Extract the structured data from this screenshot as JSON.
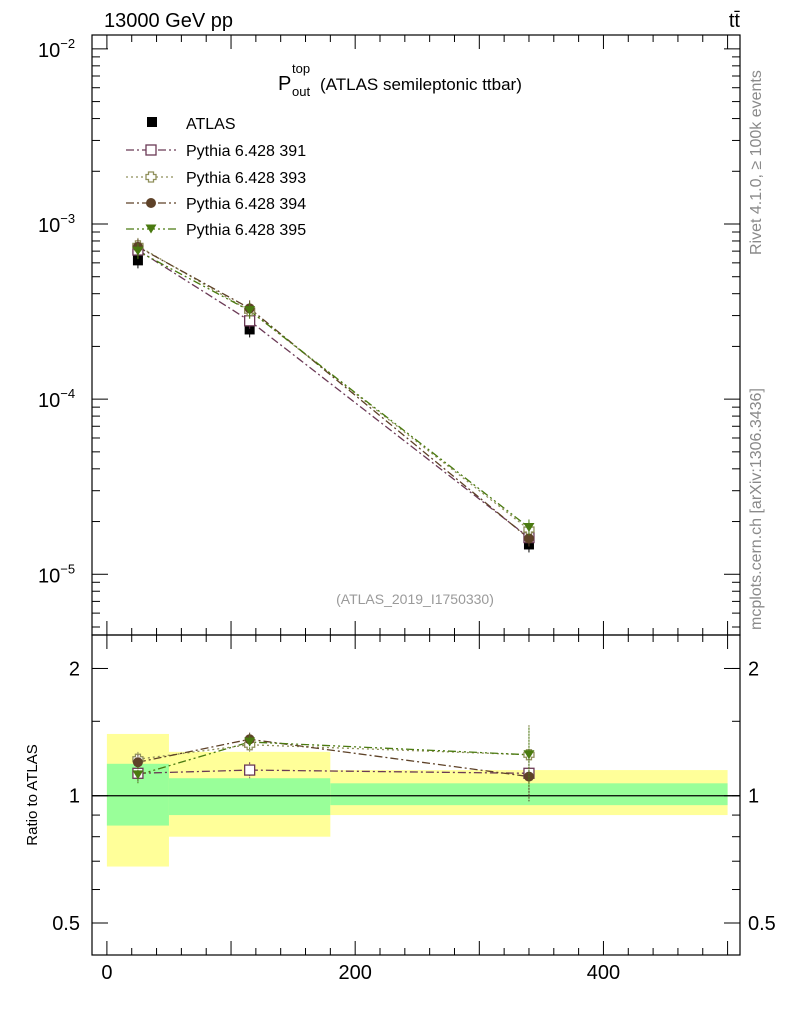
{
  "header": {
    "left": "13000 GeV pp",
    "right": "tt̄"
  },
  "side_text": {
    "rivet": "Rivet 4.1.0, ≥ 100k events",
    "mcplots": "mcplots.cern.ch [arXiv:1306.3436]"
  },
  "plot_title": {
    "base": "P",
    "sup": "top",
    "sub": "out",
    "rest": "(ATLAS semileptonic ttbar)"
  },
  "watermark": "(ATLAS_2019_I1750330)",
  "colors": {
    "atlas": "#000000",
    "p391": "#6b3a56",
    "p393": "#8f8f5a",
    "p394": "#5e4228",
    "p395": "#4a7a10",
    "band_inner": "#99ff99",
    "band_outer": "#ffff99"
  },
  "chart_data": [
    {
      "type": "scatter",
      "panel": "main",
      "yscale": "log",
      "ylim": [
        4.5e-06,
        0.012
      ],
      "xlim": [
        -12,
        510
      ],
      "yticks": [
        {
          "value": 1e-05,
          "base": "10",
          "exp": "−5"
        },
        {
          "value": 0.0001,
          "base": "10",
          "exp": "−4"
        },
        {
          "value": 0.001,
          "base": "10",
          "exp": "−3"
        },
        {
          "value": 0.01,
          "base": "10",
          "exp": "−2"
        }
      ],
      "x": [
        25,
        115,
        340
      ],
      "series": [
        {
          "name": "ATLAS",
          "key": "atlas",
          "marker": "square-filled",
          "line": "none",
          "values": [
            0.00062,
            0.00025,
            1.48e-05
          ]
        },
        {
          "name": "Pythia 6.428 391",
          "key": "p391",
          "marker": "square-open",
          "line": "dashdot",
          "values": [
            0.00071,
            0.00028,
            1.62e-05
          ]
        },
        {
          "name": "Pythia 6.428 393",
          "key": "p393",
          "marker": "cross-open",
          "line": "dotted",
          "values": [
            0.00075,
            0.00032,
            1.8e-05
          ]
        },
        {
          "name": "Pythia 6.428 394",
          "key": "p394",
          "marker": "circle-filled",
          "line": "dashdot",
          "values": [
            0.00074,
            0.00033,
            1.6e-05
          ]
        },
        {
          "name": "Pythia 6.428 395",
          "key": "p395",
          "marker": "triangle-down-filled",
          "line": "dashdotdot",
          "values": [
            0.0007,
            0.00032,
            1.85e-05
          ]
        }
      ],
      "legend_position": "top-left"
    },
    {
      "type": "scatter",
      "panel": "ratio",
      "yscale": "log",
      "ylabel": "Ratio to ATLAS",
      "ylim": [
        0.42,
        2.4
      ],
      "xlim": [
        -12,
        510
      ],
      "yticks": [
        {
          "value": 0.5,
          "label": "0.5"
        },
        {
          "value": 1,
          "label": "1"
        },
        {
          "value": 2,
          "label": "2"
        }
      ],
      "xticks": [
        {
          "value": 0,
          "label": "0"
        },
        {
          "value": 200,
          "label": "200"
        },
        {
          "value": 400,
          "label": "400"
        }
      ],
      "bins": [
        [
          0,
          50
        ],
        [
          50,
          180
        ],
        [
          180,
          500
        ]
      ],
      "band_inner": [
        [
          0.85,
          1.19
        ],
        [
          0.9,
          1.1
        ],
        [
          0.95,
          1.07
        ]
      ],
      "band_outer": [
        [
          0.68,
          1.4
        ],
        [
          0.8,
          1.27
        ],
        [
          0.9,
          1.15
        ]
      ],
      "x": [
        25,
        115,
        340
      ],
      "series": [
        {
          "name": "Pythia 6.428 391",
          "key": "p391",
          "values": [
            1.13,
            1.15,
            1.13
          ],
          "err": [
            0.05,
            0.05,
            0.12
          ]
        },
        {
          "name": "Pythia 6.428 393",
          "key": "p393",
          "values": [
            1.22,
            1.32,
            1.25
          ],
          "err": [
            0.05,
            0.05,
            0.22
          ]
        },
        {
          "name": "Pythia 6.428 394",
          "key": "p394",
          "values": [
            1.2,
            1.36,
            1.11
          ],
          "err": [
            0.05,
            0.05,
            0.14
          ]
        },
        {
          "name": "Pythia 6.428 395",
          "key": "p395",
          "values": [
            1.12,
            1.34,
            1.25
          ],
          "err": [
            0.05,
            0.05,
            0.2
          ]
        }
      ]
    }
  ]
}
